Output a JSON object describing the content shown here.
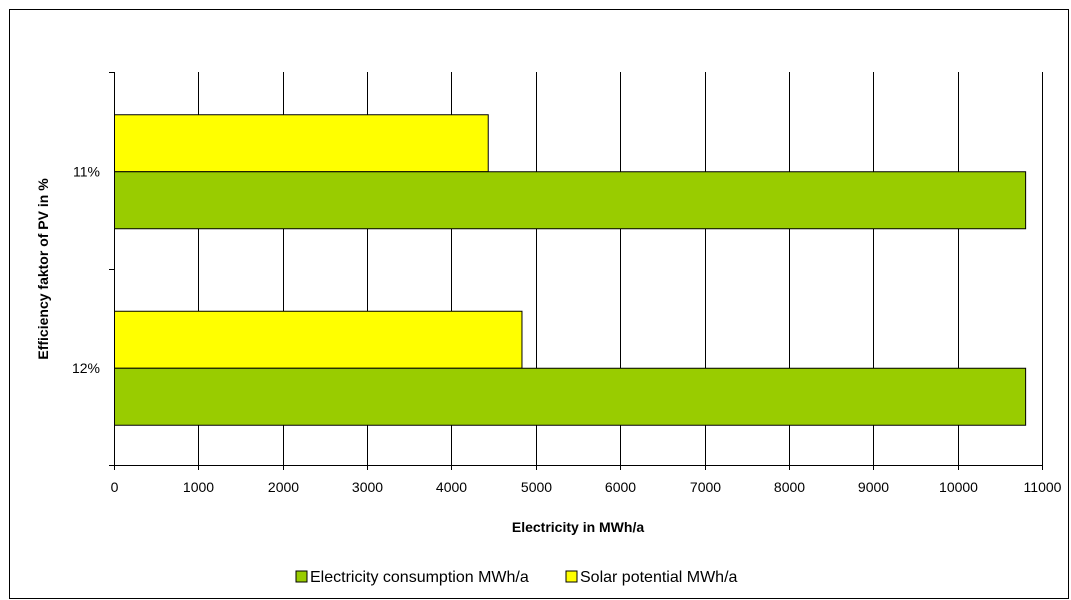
{
  "chart_data": {
    "type": "bar",
    "orientation": "horizontal",
    "categories": [
      "11%",
      "12%"
    ],
    "series": [
      {
        "name": "Electricity consumption MWh/a",
        "values": [
          10800,
          10800
        ],
        "color": "#99cc00"
      },
      {
        "name": "Solar potential MWh/a",
        "values": [
          4430,
          4830
        ],
        "color": "#ffff00"
      }
    ],
    "xlabel": "Electricity in MWh/a",
    "ylabel": "Efficiency faktor of PV in %",
    "xlim": [
      0,
      11000
    ],
    "xticks": [
      0,
      1000,
      2000,
      3000,
      4000,
      5000,
      6000,
      7000,
      8000,
      9000,
      10000,
      11000
    ],
    "grid": "vertical",
    "legend": "bottom"
  }
}
